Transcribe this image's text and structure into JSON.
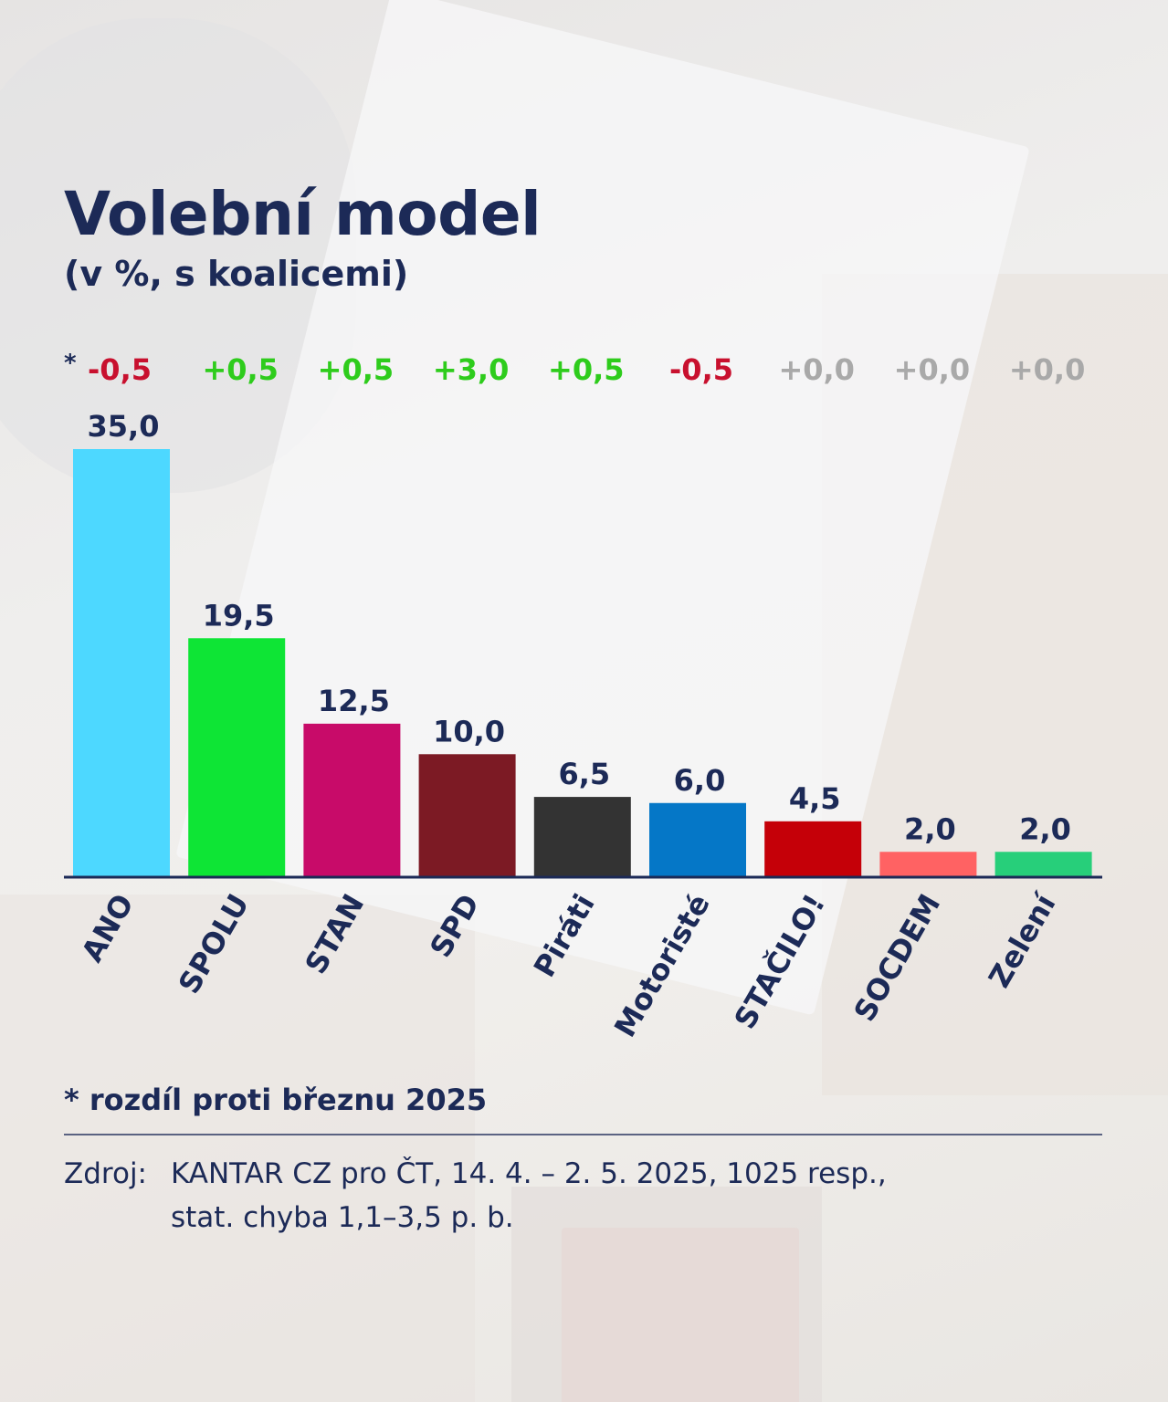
{
  "title": "Volební model",
  "subtitle": "(v %, s koalicemi)",
  "chart_data": {
    "type": "bar",
    "categories": [
      "ANO",
      "SPOLU",
      "STAN",
      "SPD",
      "Piráti",
      "Motoristé",
      "STAČILO!",
      "SOCDEM",
      "Zelení"
    ],
    "values": [
      35.0,
      19.5,
      12.5,
      10.0,
      6.5,
      6.0,
      4.5,
      2.0,
      2.0
    ],
    "value_labels": [
      "35,0",
      "19,5",
      "12,5",
      "10,0",
      "6,5",
      "6,0",
      "4,5",
      "2,0",
      "2,0"
    ],
    "change_marker": "*",
    "changes": [
      -0.5,
      0.5,
      0.5,
      3.0,
      0.5,
      -0.5,
      0.0,
      0.0,
      0.0
    ],
    "change_labels": [
      "-0,5",
      "+0,5",
      "+0,5",
      "+3,0",
      "+0,5",
      "-0,5",
      "+0,0",
      "+0,0",
      "+0,0"
    ],
    "colors": [
      "#4dd8ff",
      "#0ee535",
      "#c80b69",
      "#7c1a24",
      "#333333",
      "#0577c7",
      "#c50008",
      "#ff6263",
      "#27cf7a"
    ],
    "change_colors": {
      "negative": "#c8102e",
      "positive": "#2ecc1c",
      "neutral": "#a9a9a9"
    },
    "ylim": [
      0,
      35
    ],
    "grid": false,
    "legend": "none",
    "xlabel": "",
    "ylabel": ""
  },
  "footnote": "* rozdíl proti březnu 2025",
  "source": {
    "label": "Zdroj:",
    "line1": "KANTAR CZ pro ČT, 14. 4. – 2. 5. 2025, 1025 resp.,",
    "line2": "stat. chyba 1,1–3,5 p. b."
  }
}
